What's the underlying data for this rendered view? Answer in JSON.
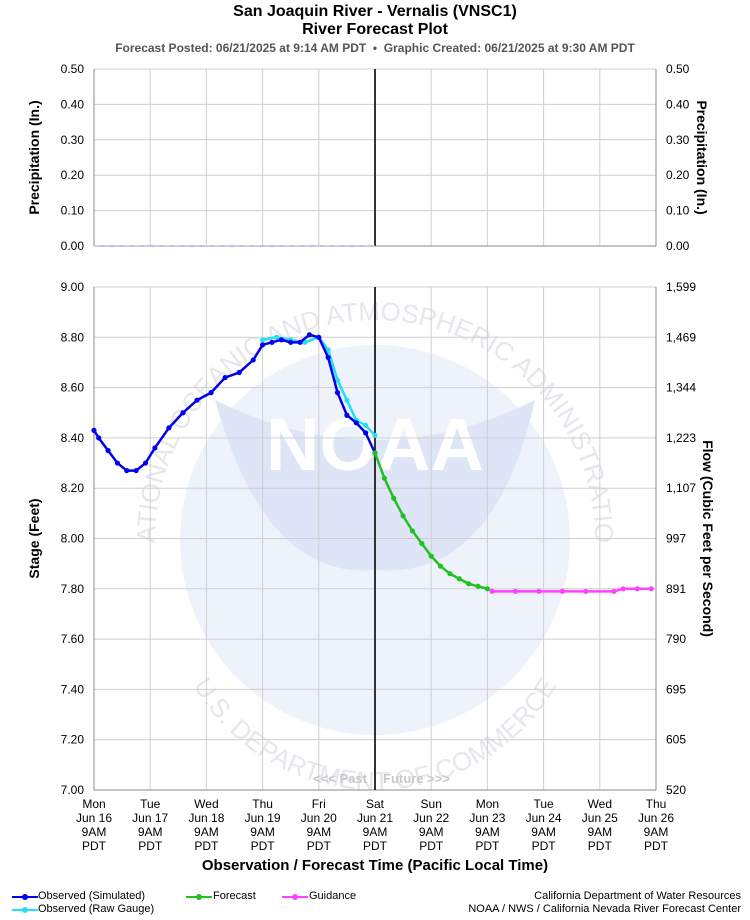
{
  "header": {
    "title": "San Joaquin River - Vernalis (VNSC1)",
    "subtitle": "River Forecast Plot",
    "posted_label": "Forecast Posted:",
    "posted_value": "06/21/2025 at 9:14 AM PDT",
    "separator": "•",
    "created_label": "Graphic Created:",
    "created_value": "06/21/2025 at 9:30 AM PDT"
  },
  "chart_data": [
    {
      "type": "line",
      "panel": "precipitation",
      "ylabel_left": "Precipitation (In.)",
      "ylabel_right": "Precipitation (In.)",
      "ylim": [
        0,
        0.5
      ],
      "yticks": [
        "0.00",
        "0.10",
        "0.20",
        "0.30",
        "0.40",
        "0.50"
      ],
      "series": [
        {
          "values": [
            0,
            0,
            0,
            0,
            0,
            0,
            0,
            0,
            0,
            0,
            0,
            0,
            0,
            0,
            0,
            0,
            0,
            0,
            0,
            0
          ]
        }
      ]
    },
    {
      "type": "line",
      "panel": "stage",
      "ylabel_left": "Stage (Feet)",
      "ylabel_right": "Flow (Cubic Feet per Second)",
      "ylim": [
        7.0,
        9.0
      ],
      "yticks": [
        "7.00",
        "7.20",
        "7.40",
        "7.60",
        "7.80",
        "8.00",
        "8.20",
        "8.40",
        "8.60",
        "8.80",
        "9.00"
      ],
      "yticks_right": [
        "520",
        "605",
        "695",
        "790",
        "891",
        "997",
        "1,107",
        "1,223",
        "1,344",
        "1,469",
        "1,599"
      ],
      "xlabel": "Observation / Forecast Time (Pacific Local Time)",
      "x_unit": "hours since Mon Jun 16 9AM PDT",
      "xlim": [
        0,
        240
      ],
      "grid": true,
      "now_x": 120,
      "past_label": "<<< Past",
      "future_label": "Future >>>",
      "x_ticks": [
        {
          "day": "Mon",
          "date": "Jun 16",
          "time": "9AM",
          "tz": "PDT"
        },
        {
          "day": "Tue",
          "date": "Jun 17",
          "time": "9AM",
          "tz": "PDT"
        },
        {
          "day": "Wed",
          "date": "Jun 18",
          "time": "9AM",
          "tz": "PDT"
        },
        {
          "day": "Thu",
          "date": "Jun 19",
          "time": "9AM",
          "tz": "PDT"
        },
        {
          "day": "Fri",
          "date": "Jun 20",
          "time": "9AM",
          "tz": "PDT"
        },
        {
          "day": "Sat",
          "date": "Jun 21",
          "time": "9AM",
          "tz": "PDT"
        },
        {
          "day": "Sun",
          "date": "Jun 22",
          "time": "9AM",
          "tz": "PDT"
        },
        {
          "day": "Mon",
          "date": "Jun 23",
          "time": "9AM",
          "tz": "PDT"
        },
        {
          "day": "Tue",
          "date": "Jun 24",
          "time": "9AM",
          "tz": "PDT"
        },
        {
          "day": "Wed",
          "date": "Jun 25",
          "time": "9AM",
          "tz": "PDT"
        },
        {
          "day": "Thu",
          "date": "Jun 26",
          "time": "9AM",
          "tz": "PDT"
        }
      ],
      "series": [
        {
          "name": "Observed (Raw Gauge)",
          "color": "#22e0f0",
          "x": [
            72,
            78,
            84,
            90,
            96,
            100,
            104,
            108,
            112,
            116,
            120
          ],
          "y": [
            8.79,
            8.8,
            8.79,
            8.78,
            8.8,
            8.75,
            8.63,
            8.55,
            8.47,
            8.45,
            8.41
          ]
        },
        {
          "name": "Observed (Simulated)",
          "color": "#0000ee",
          "x": [
            0,
            2,
            6,
            10,
            14,
            18,
            22,
            26,
            32,
            38,
            44,
            50,
            56,
            62,
            68,
            72,
            76,
            80,
            84,
            88,
            92,
            96,
            100,
            104,
            108,
            112,
            116,
            120
          ],
          "y": [
            8.43,
            8.4,
            8.35,
            8.3,
            8.27,
            8.27,
            8.3,
            8.36,
            8.44,
            8.5,
            8.55,
            8.58,
            8.64,
            8.66,
            8.71,
            8.77,
            8.78,
            8.79,
            8.78,
            8.78,
            8.81,
            8.8,
            8.72,
            8.58,
            8.49,
            8.46,
            8.42,
            8.34
          ]
        },
        {
          "name": "Forecast",
          "color": "#22c022",
          "x": [
            120,
            124,
            128,
            132,
            136,
            140,
            144,
            148,
            152,
            156,
            160,
            164,
            168
          ],
          "y": [
            8.34,
            8.24,
            8.16,
            8.09,
            8.03,
            7.98,
            7.93,
            7.89,
            7.86,
            7.84,
            7.82,
            7.81,
            7.8
          ]
        },
        {
          "name": "Guidance",
          "color": "#ff40ff",
          "x": [
            170,
            180,
            190,
            200,
            210,
            222,
            226,
            232,
            238
          ],
          "y": [
            7.79,
            7.79,
            7.79,
            7.79,
            7.79,
            7.79,
            7.8,
            7.8,
            7.8
          ]
        }
      ]
    }
  ],
  "legend": {
    "items": [
      {
        "name": "Observed (Simulated)",
        "color": "#0000ee"
      },
      {
        "name": "Observed (Raw Gauge)",
        "color": "#22e0f0"
      },
      {
        "name": "Forecast",
        "color": "#22c022"
      },
      {
        "name": "Guidance",
        "color": "#ff40ff"
      }
    ]
  },
  "credits": {
    "line1": "California Department of Water Resources",
    "line2": "NOAA / NWS / California Nevada River Forecast Center"
  },
  "watermark": {
    "center_text": "NOAA",
    "ring_top": "NATIONAL OCEANIC AND ATMOSPHERIC ADMINISTRATION",
    "ring_bottom": "U.S. DEPARTMENT OF COMMERCE"
  }
}
